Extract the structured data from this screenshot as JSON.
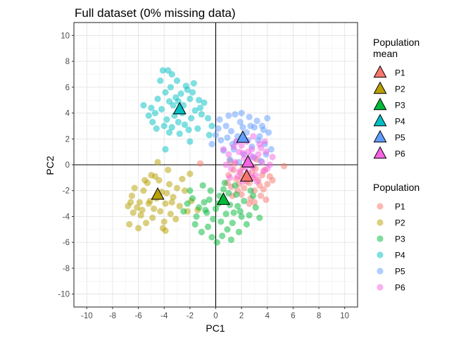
{
  "chart_data": {
    "type": "scatter",
    "title": "Full dataset (0% missing data)",
    "xlabel": "PC1",
    "ylabel": "PC2",
    "xlim": [
      -11,
      11
    ],
    "ylim": [
      -11,
      11
    ],
    "xticks": [
      -10,
      -8,
      -6,
      -4,
      -2,
      0,
      2,
      4,
      6,
      8,
      10
    ],
    "yticks": [
      -10,
      -8,
      -6,
      -4,
      -2,
      0,
      2,
      4,
      6,
      8,
      10
    ],
    "grid": true,
    "reference_lines": {
      "x": 0,
      "y": 0
    },
    "legend_placement": "right",
    "legends": [
      {
        "title_lines": [
          "Population",
          " mean"
        ],
        "marker": "triangle",
        "entries": [
          "P1",
          "P2",
          "P3",
          "P4",
          "P5",
          "P6"
        ]
      },
      {
        "title_lines": [
          "Population"
        ],
        "marker": "circle",
        "entries": [
          "P1",
          "P2",
          "P3",
          "P4",
          "P5",
          "P6"
        ]
      }
    ],
    "colors": {
      "P1": "#F8766D",
      "P2": "#B79F00",
      "P3": "#00BA38",
      "P4": "#00BFC4",
      "P5": "#619CFF",
      "P6": "#F564E3"
    },
    "series": [
      {
        "name": "P1",
        "mean": [
          2.4,
          -0.9
        ],
        "points": [
          [
            1.9,
            -0.6
          ],
          [
            2.6,
            -1.4
          ],
          [
            3.1,
            -0.3
          ],
          [
            2.2,
            -1.8
          ],
          [
            1.6,
            -1.1
          ],
          [
            3.4,
            -1.6
          ],
          [
            2.8,
            -0.1
          ],
          [
            1.4,
            -0.4
          ],
          [
            2.0,
            -2.3
          ],
          [
            3.6,
            -0.8
          ],
          [
            2.5,
            0.2
          ],
          [
            1.8,
            -1.5
          ],
          [
            3.0,
            -2.0
          ],
          [
            2.3,
            -0.8
          ],
          [
            1.2,
            -1.7
          ],
          [
            3.3,
            -1.2
          ],
          [
            2.7,
            -2.6
          ],
          [
            4.0,
            -1.5
          ],
          [
            1.5,
            0.1
          ],
          [
            2.1,
            -0.2
          ],
          [
            3.8,
            -0.4
          ],
          [
            2.9,
            -1.0
          ],
          [
            1.0,
            -0.8
          ],
          [
            3.5,
            -2.4
          ],
          [
            2.4,
            -1.3
          ],
          [
            0.9,
            -1.4
          ],
          [
            4.2,
            -0.9
          ],
          [
            2.6,
            -3.0
          ],
          [
            3.2,
            0.4
          ],
          [
            1.7,
            -2.0
          ],
          [
            5.3,
            -0.1
          ],
          [
            3.0,
            -2.9
          ],
          [
            -1.2,
            0.1
          ],
          [
            2.0,
            -1.0
          ],
          [
            1.3,
            -2.4
          ],
          [
            3.7,
            -1.9
          ],
          [
            2.8,
            -0.6
          ],
          [
            4.4,
            -1.2
          ],
          [
            1.1,
            0.3
          ],
          [
            3.9,
            -2.7
          ]
        ]
      },
      {
        "name": "P2",
        "mean": [
          -4.5,
          -2.3
        ],
        "points": [
          [
            -4.2,
            -2.1
          ],
          [
            -5.1,
            -2.8
          ],
          [
            -3.6,
            -1.5
          ],
          [
            -4.8,
            -3.4
          ],
          [
            -5.6,
            -2.0
          ],
          [
            -3.9,
            -3.0
          ],
          [
            -4.4,
            -1.2
          ],
          [
            -6.1,
            -3.3
          ],
          [
            -5.3,
            -1.4
          ],
          [
            -3.3,
            -2.5
          ],
          [
            -4.9,
            -4.1
          ],
          [
            -6.5,
            -2.4
          ],
          [
            -3.0,
            -1.8
          ],
          [
            -5.8,
            -3.9
          ],
          [
            -4.0,
            -4.4
          ],
          [
            -2.8,
            -3.2
          ],
          [
            -6.7,
            -4.6
          ],
          [
            -5.0,
            -0.8
          ],
          [
            -3.5,
            -3.8
          ],
          [
            -4.6,
            -2.6
          ],
          [
            -6.3,
            -1.8
          ],
          [
            -2.4,
            -2.0
          ],
          [
            -5.4,
            -4.5
          ],
          [
            -3.7,
            -0.4
          ],
          [
            -4.3,
            -3.6
          ],
          [
            -6.0,
            -4.9
          ],
          [
            -2.6,
            -1.1
          ],
          [
            -5.2,
            -3.0
          ],
          [
            -3.1,
            -4.2
          ],
          [
            -6.4,
            -3.7
          ],
          [
            -4.7,
            -0.9
          ],
          [
            -1.9,
            -2.8
          ],
          [
            -5.9,
            -2.9
          ],
          [
            -3.4,
            -2.9
          ],
          [
            -4.1,
            -4.9
          ],
          [
            -2.2,
            -3.6
          ],
          [
            -6.6,
            -2.9
          ],
          [
            -5.5,
            -1.2
          ],
          [
            -3.8,
            -2.2
          ],
          [
            -1.4,
            -3.5
          ],
          [
            -6.8,
            -3.2
          ],
          [
            -4.5,
            0.2
          ],
          [
            -2.0,
            -0.7
          ],
          [
            -3.9,
            -5.1
          ],
          [
            -5.7,
            -3.5
          ]
        ]
      },
      {
        "name": "P3",
        "mean": [
          0.6,
          -2.7
        ],
        "points": [
          [
            0.3,
            -2.4
          ],
          [
            1.1,
            -3.1
          ],
          [
            -0.4,
            -2.0
          ],
          [
            0.8,
            -3.8
          ],
          [
            -0.9,
            -2.9
          ],
          [
            1.6,
            -2.3
          ],
          [
            0.0,
            -3.4
          ],
          [
            1.9,
            -3.6
          ],
          [
            -0.2,
            -4.2
          ],
          [
            0.6,
            -1.9
          ],
          [
            -1.3,
            -3.3
          ],
          [
            1.3,
            -4.5
          ],
          [
            2.2,
            -2.8
          ],
          [
            -0.6,
            -4.8
          ],
          [
            0.9,
            -5.0
          ],
          [
            -1.8,
            -2.6
          ],
          [
            1.5,
            -1.6
          ],
          [
            0.2,
            -3.0
          ],
          [
            2.6,
            -3.9
          ],
          [
            -1.0,
            -1.6
          ],
          [
            0.5,
            -5.5
          ],
          [
            1.8,
            -5.2
          ],
          [
            -0.7,
            -3.7
          ],
          [
            2.9,
            -2.4
          ],
          [
            -1.5,
            -4.0
          ],
          [
            1.0,
            -2.2
          ],
          [
            -0.3,
            -5.6
          ],
          [
            2.4,
            -4.6
          ],
          [
            -2.2,
            -3.0
          ],
          [
            0.4,
            -4.4
          ],
          [
            1.2,
            -5.8
          ],
          [
            -1.1,
            -5.2
          ],
          [
            3.1,
            -3.3
          ],
          [
            -2.5,
            -3.6
          ],
          [
            0.7,
            -1.4
          ],
          [
            1.7,
            -3.2
          ],
          [
            -0.5,
            -2.7
          ],
          [
            2.0,
            -4.0
          ],
          [
            -1.6,
            -4.6
          ],
          [
            0.1,
            -6.0
          ],
          [
            2.7,
            -2.0
          ],
          [
            -2.0,
            -2.0
          ],
          [
            1.4,
            -3.7
          ],
          [
            -0.8,
            -3.5
          ],
          [
            3.4,
            -4.1
          ]
        ]
      },
      {
        "name": "P4",
        "mean": [
          -2.8,
          4.3
        ],
        "points": [
          [
            -2.5,
            4.6
          ],
          [
            -3.2,
            3.8
          ],
          [
            -2.0,
            5.1
          ],
          [
            -3.6,
            4.9
          ],
          [
            -2.9,
            3.3
          ],
          [
            -1.6,
            4.2
          ],
          [
            -3.9,
            5.6
          ],
          [
            -2.3,
            6.1
          ],
          [
            -3.4,
            2.9
          ],
          [
            -1.9,
            3.6
          ],
          [
            -4.2,
            4.3
          ],
          [
            -2.7,
            5.5
          ],
          [
            -1.3,
            5.0
          ],
          [
            -3.8,
            3.5
          ],
          [
            -2.1,
            2.7
          ],
          [
            -4.5,
            5.1
          ],
          [
            -3.0,
            6.5
          ],
          [
            -1.1,
            3.9
          ],
          [
            -2.6,
            4.0
          ],
          [
            -3.5,
            6.0
          ],
          [
            -4.0,
            3.0
          ],
          [
            -1.7,
            6.3
          ],
          [
            -2.4,
            3.1
          ],
          [
            -4.7,
            4.0
          ],
          [
            -3.3,
            4.6
          ],
          [
            -0.9,
            4.8
          ],
          [
            -3.7,
            7.3
          ],
          [
            -2.2,
            5.8
          ],
          [
            -4.3,
            6.5
          ],
          [
            -1.4,
            2.8
          ],
          [
            -5.0,
            4.4
          ],
          [
            -2.8,
            2.4
          ],
          [
            -3.1,
            5.2
          ],
          [
            -0.6,
            3.6
          ],
          [
            -4.9,
            3.3
          ],
          [
            -1.8,
            5.6
          ],
          [
            -3.6,
            2.5
          ],
          [
            -2.0,
            1.8
          ],
          [
            -5.6,
            4.6
          ],
          [
            -4.1,
            7.3
          ],
          [
            -0.3,
            3.0
          ],
          [
            -3.9,
            1.2
          ],
          [
            -0.5,
            2.3
          ],
          [
            -4.6,
            2.8
          ],
          [
            -2.9,
            4.9
          ],
          [
            -1.2,
            4.4
          ],
          [
            -5.2,
            3.8
          ],
          [
            -3.4,
            7.0
          ]
        ]
      },
      {
        "name": "P5",
        "mean": [
          2.1,
          2.1
        ],
        "points": [
          [
            2.4,
            2.5
          ],
          [
            1.6,
            1.8
          ],
          [
            3.0,
            2.9
          ],
          [
            1.2,
            2.6
          ],
          [
            2.8,
            1.4
          ],
          [
            0.8,
            3.0
          ],
          [
            3.4,
            2.2
          ],
          [
            1.9,
            3.3
          ],
          [
            0.4,
            1.9
          ],
          [
            2.6,
            3.7
          ],
          [
            3.8,
            1.6
          ],
          [
            1.4,
            1.2
          ],
          [
            2.2,
            0.8
          ],
          [
            0.2,
            2.8
          ],
          [
            3.2,
            3.4
          ],
          [
            1.0,
            3.8
          ],
          [
            4.1,
            2.5
          ],
          [
            1.7,
            2.2
          ],
          [
            2.9,
            0.6
          ],
          [
            0.6,
            1.1
          ],
          [
            3.6,
            3.0
          ],
          [
            2.0,
            4.0
          ],
          [
            4.3,
            1.2
          ],
          [
            1.1,
            0.4
          ],
          [
            2.5,
            1.9
          ],
          [
            0.0,
            2.3
          ],
          [
            3.5,
            0.3
          ],
          [
            1.5,
            3.9
          ],
          [
            4.0,
            3.6
          ],
          [
            0.9,
            2.1
          ],
          [
            2.7,
            3.0
          ],
          [
            3.9,
            0.8
          ],
          [
            0.3,
            3.5
          ],
          [
            1.8,
            0.2
          ],
          [
            3.3,
            1.9
          ],
          [
            2.1,
            2.9
          ],
          [
            -0.3,
            1.6
          ],
          [
            3.7,
            2.7
          ],
          [
            1.3,
            1.6
          ],
          [
            2.6,
            0.0
          ]
        ]
      },
      {
        "name": "P6",
        "mean": [
          2.5,
          0.2
        ],
        "points": [
          [
            2.2,
            0.5
          ],
          [
            2.9,
            -0.2
          ],
          [
            1.8,
            1.0
          ],
          [
            3.3,
            0.8
          ],
          [
            2.5,
            -0.6
          ],
          [
            1.5,
            0.2
          ],
          [
            3.6,
            0.2
          ],
          [
            2.0,
            1.5
          ],
          [
            2.8,
            1.2
          ],
          [
            1.2,
            -0.3
          ],
          [
            3.1,
            -0.8
          ],
          [
            2.4,
            1.8
          ],
          [
            1.7,
            -0.9
          ],
          [
            3.9,
            1.0
          ],
          [
            2.6,
            0.0
          ],
          [
            1.0,
            0.8
          ],
          [
            3.4,
            1.6
          ],
          [
            2.1,
            -1.3
          ],
          [
            4.2,
            0.0
          ],
          [
            1.4,
            1.4
          ],
          [
            2.9,
            2.2
          ],
          [
            3.7,
            -0.5
          ],
          [
            0.8,
            0.0
          ],
          [
            2.3,
            -0.2
          ],
          [
            3.0,
            0.5
          ],
          [
            1.9,
            -0.5
          ],
          [
            3.5,
            1.3
          ],
          [
            2.7,
            0.7
          ],
          [
            4.4,
            0.6
          ],
          [
            0.6,
            1.2
          ],
          [
            2.1,
            0.9
          ],
          [
            3.2,
            -1.3
          ],
          [
            1.6,
            1.8
          ],
          [
            3.8,
            1.8
          ],
          [
            2.5,
            1.0
          ],
          [
            1.1,
            -1.0
          ],
          [
            2.8,
            -1.0
          ],
          [
            4.0,
            -0.3
          ]
        ]
      }
    ]
  }
}
